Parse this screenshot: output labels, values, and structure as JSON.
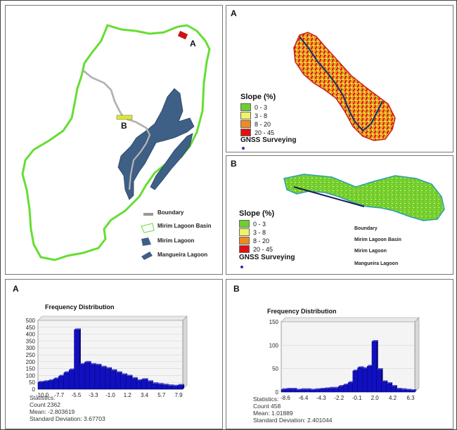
{
  "main_map": {
    "label_a": "A",
    "label_b": "B",
    "legend": [
      {
        "label": "Boundary",
        "icon": "boundary-line-icon"
      },
      {
        "label": "Mirim Lagoon Basin",
        "icon": "basin-outline-icon"
      },
      {
        "label": "Mirim Lagoon",
        "icon": "lagoon-polygon-icon"
      },
      {
        "label": "Mangueira Lagoon",
        "icon": "lagoon-polygon-icon"
      }
    ],
    "colors": {
      "basin": "#66dd33",
      "lagoon": "#3e5f86",
      "boundary": "#9a9a9a"
    }
  },
  "map_a": {
    "label": "A",
    "legend_title": "Slope (%)",
    "classes": [
      {
        "label": "0 - 3",
        "color": "#6ccf2f"
      },
      {
        "label": "3 - 8",
        "color": "#f2f26a"
      },
      {
        "label": "8 - 20",
        "color": "#f08a20"
      },
      {
        "label": "20 - 45",
        "color": "#e01010"
      }
    ],
    "gnss_label": "GNSS Surveying"
  },
  "map_b": {
    "label": "B",
    "legend_title": "Slope (%)",
    "classes": [
      {
        "label": "0 - 3",
        "color": "#6ccf2f"
      },
      {
        "label": "3 - 8",
        "color": "#f2f26a"
      },
      {
        "label": "8 - 20",
        "color": "#f08a20"
      },
      {
        "label": "20 - 45",
        "color": "#e01010"
      }
    ],
    "gnss_label": "GNSS Surveying",
    "extra_legend": [
      "Boundary",
      "Mirim Lagoon Basin",
      "Mirim Lagoon",
      "Mangueira Lagoon"
    ]
  },
  "chart_data": [
    {
      "type": "bar",
      "panel_label": "A",
      "title": "Frequency Distribution",
      "x_ticks": [
        "-10.0",
        "-7.7",
        "-5.5",
        "-3.3",
        "-1.0",
        "1.2",
        "3.4",
        "5.7",
        "7.9"
      ],
      "y_ticks": [
        "0",
        "50",
        "100",
        "150",
        "200",
        "250",
        "300",
        "350",
        "400",
        "450",
        "500"
      ],
      "ylim": [
        0,
        500
      ],
      "values": [
        50,
        55,
        62,
        75,
        95,
        120,
        140,
        432,
        180,
        195,
        180,
        175,
        160,
        150,
        135,
        120,
        105,
        95,
        78,
        62,
        70,
        55,
        40,
        35,
        30,
        25,
        22,
        28
      ],
      "bar_color": "#1010c0",
      "statistics": {
        "heading": "Statistics:",
        "count": "Count   2362",
        "mean": "Mean: -2.803619",
        "sd": "Standard Deviation: 3.67703"
      }
    },
    {
      "type": "bar",
      "panel_label": "B",
      "title": "Frequency Distribution",
      "x_ticks": [
        "-8.6",
        "-6.4",
        "-4.3",
        "-2.2",
        "-0.1",
        "2.0",
        "4.2",
        "6.3"
      ],
      "y_ticks": [
        "0",
        "50",
        "100",
        "150"
      ],
      "ylim": [
        0,
        150
      ],
      "values": [
        5,
        6,
        6,
        4,
        5,
        5,
        4,
        5,
        6,
        7,
        8,
        8,
        12,
        15,
        20,
        45,
        52,
        50,
        55,
        108,
        48,
        22,
        18,
        12,
        6,
        5,
        4,
        3
      ],
      "bar_color": "#1010c0",
      "statistics": {
        "heading": "Statistics:",
        "count": "Count   458",
        "mean": "Mean: 1.01889",
        "sd": "Standard Deviation: 2.401044"
      }
    }
  ]
}
